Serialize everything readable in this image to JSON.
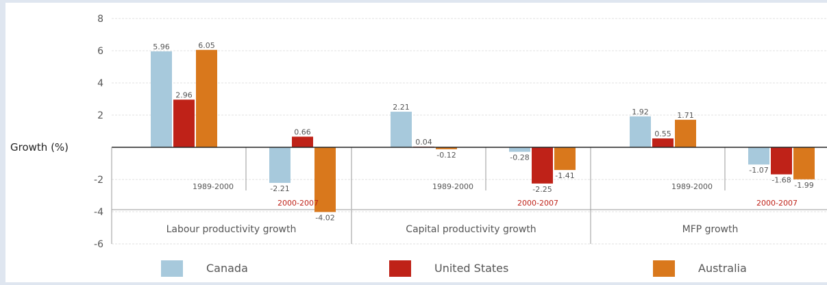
{
  "chart_data": {
    "type": "bar",
    "ylabel": "Growth (%)",
    "ylim": [
      -6,
      8
    ],
    "yticks": [
      "8",
      "6",
      "4",
      "2",
      "-2",
      "-4",
      "-6"
    ],
    "grid": true,
    "legend_position": "bottom",
    "series": [
      {
        "name": "Canada",
        "color": "#a7c9dc"
      },
      {
        "name": "United States",
        "color": "#bf2218"
      },
      {
        "name": "Australia",
        "color": "#d9781c"
      }
    ],
    "groups": [
      {
        "label": "Labour productivity growth",
        "periods": [
          {
            "label": "1989-2000",
            "values": [
              5.96,
              2.96,
              6.05
            ],
            "value_labels": [
              "5.96",
              "2.96",
              "6.05"
            ]
          },
          {
            "label": "2000-2007",
            "values": [
              -2.21,
              0.66,
              -4.02
            ],
            "value_labels": [
              "-2.21",
              "0.66",
              "-4.02"
            ]
          }
        ]
      },
      {
        "label": "Capital productivity growth",
        "periods": [
          {
            "label": "1989-2000",
            "values": [
              2.21,
              0.04,
              -0.12
            ],
            "value_labels": [
              "2.21",
              "0.04",
              "-0.12"
            ]
          },
          {
            "label": "2000-2007",
            "values": [
              -0.28,
              -2.25,
              -1.41
            ],
            "value_labels": [
              "-0.28",
              "-2.25",
              "-1.41"
            ]
          }
        ]
      },
      {
        "label": "MFP growth",
        "periods": [
          {
            "label": "1989-2000",
            "values": [
              1.92,
              0.55,
              1.71
            ],
            "value_labels": [
              "1.92",
              "0.55",
              "1.71"
            ]
          },
          {
            "label": "2000-2007",
            "values": [
              -1.07,
              -1.68,
              -1.99
            ],
            "value_labels": [
              "-1.07",
              "-1.68",
              "-1.99"
            ]
          }
        ]
      }
    ],
    "period_label_colors": {
      "1989-2000": "#555555",
      "2000-2007": "#bf2218"
    }
  }
}
